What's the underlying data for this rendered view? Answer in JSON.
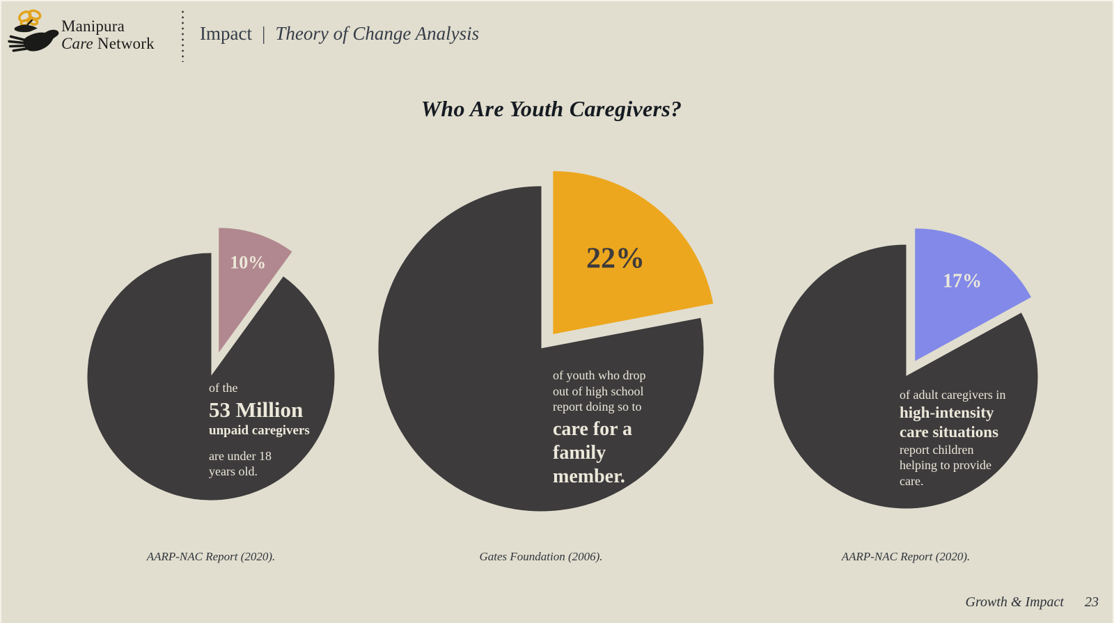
{
  "brand": {
    "line1": "Manipura",
    "line2_italic": "Care",
    "line2_rest": " Network"
  },
  "header": {
    "section": "Impact",
    "divider": "|",
    "subtitle": "Theory of Change Analysis"
  },
  "slide_title": "Who Are Youth Caregivers?",
  "footer": {
    "label": "Growth & Impact",
    "page_number": "23"
  },
  "colors": {
    "background": "#e1decf",
    "pie_base": "#3d3b3c",
    "cream_text": "#ece8da",
    "accent_rose": "#b1888f",
    "accent_amber": "#eda71e",
    "accent_periwinkle": "#8289e8"
  },
  "chart_data": [
    {
      "type": "pie",
      "categories": [
        "caregivers under 18",
        "other caregivers"
      ],
      "values": [
        10,
        90
      ],
      "percent_label": "10%",
      "colors": {
        "accent": "#b1888f",
        "base": "#3d3b3c",
        "label": "#ece8da"
      },
      "annotation": {
        "line1": "of the",
        "line2": "53 Million",
        "line3": "unpaid caregivers",
        "line4": "are under 18",
        "line5": "years old."
      },
      "source": "AARP-NAC Report (2020)."
    },
    {
      "type": "pie",
      "categories": [
        "dropped out to care for family",
        "other dropouts"
      ],
      "values": [
        22,
        78
      ],
      "percent_label": "22%",
      "colors": {
        "accent": "#eda71e",
        "base": "#3d3b3c",
        "label": "#3d3b3c"
      },
      "annotation": {
        "line1": "of youth who drop",
        "line2": "out of high school",
        "line3": "report doing so to",
        "line4": "care for a",
        "line5": "family",
        "line6": "member."
      },
      "source": "Gates Foundation (2006)."
    },
    {
      "type": "pie",
      "categories": [
        "children helping to provide care",
        "other"
      ],
      "values": [
        17,
        83
      ],
      "percent_label": "17%",
      "colors": {
        "accent": "#8289e8",
        "base": "#3d3b3c",
        "label": "#ece8da"
      },
      "annotation": {
        "line1": "of adult caregivers in",
        "line2": "high-intensity",
        "line3": "care situations",
        "line4": "report children",
        "line5": "helping to provide",
        "line6": "care."
      },
      "source": "AARP-NAC Report (2020)."
    }
  ]
}
